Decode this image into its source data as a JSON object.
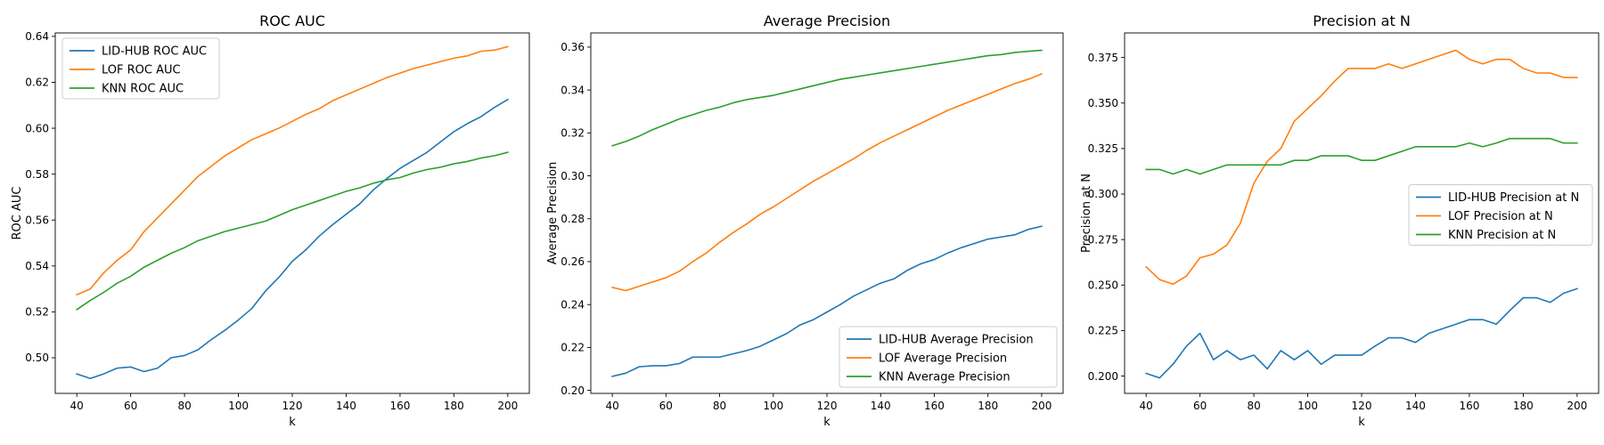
{
  "colors": {
    "LID-HUB": "#1f77b4",
    "LOF": "#ff7f0e",
    "KNN": "#2ca02c"
  },
  "chart_data": [
    {
      "type": "line",
      "title": "ROC AUC",
      "xlabel": "k",
      "ylabel": "ROC AUC",
      "xlim": [
        32,
        208
      ],
      "ylim": [
        0.4845,
        0.6415
      ],
      "xticks": [
        40,
        60,
        80,
        100,
        120,
        140,
        160,
        180,
        200
      ],
      "xtick_labels": [
        "40",
        "60",
        "80",
        "100",
        "120",
        "140",
        "160",
        "180",
        "200"
      ],
      "yticks": [
        0.5,
        0.52,
        0.54,
        0.56,
        0.58,
        0.6,
        0.62,
        0.64
      ],
      "ytick_labels": [
        "0.50",
        "0.52",
        "0.54",
        "0.56",
        "0.58",
        "0.60",
        "0.62",
        "0.64"
      ],
      "legend_position": "upper-left",
      "x": [
        40,
        45,
        50,
        55,
        60,
        65,
        70,
        75,
        80,
        85,
        90,
        95,
        100,
        105,
        110,
        115,
        120,
        125,
        130,
        135,
        140,
        145,
        150,
        155,
        160,
        165,
        170,
        175,
        180,
        185,
        190,
        195,
        200
      ],
      "series": [
        {
          "name": "LID-HUB ROC AUC",
          "key": "LID-HUB",
          "values": [
            0.493,
            0.491,
            0.493,
            0.4955,
            0.496,
            0.494,
            0.4955,
            0.5,
            0.501,
            0.5035,
            0.508,
            0.512,
            0.5165,
            0.5215,
            0.529,
            0.535,
            0.542,
            0.547,
            0.553,
            0.558,
            0.5625,
            0.567,
            0.573,
            0.578,
            0.5825,
            0.586,
            0.5895,
            0.594,
            0.5985,
            0.602,
            0.605,
            0.609,
            0.6125
          ]
        },
        {
          "name": "LOF ROC AUC",
          "key": "LOF",
          "values": [
            0.5275,
            0.53,
            0.537,
            0.5425,
            0.547,
            0.555,
            0.561,
            0.567,
            0.573,
            0.579,
            0.5835,
            0.588,
            0.5915,
            0.595,
            0.5975,
            0.6,
            0.603,
            0.606,
            0.6085,
            0.612,
            0.6145,
            0.617,
            0.6195,
            0.622,
            0.624,
            0.626,
            0.6275,
            0.629,
            0.6305,
            0.6315,
            0.6335,
            0.634,
            0.6355
          ]
        },
        {
          "name": "KNN ROC AUC",
          "key": "KNN",
          "values": [
            0.521,
            0.525,
            0.5285,
            0.5325,
            0.5355,
            0.5395,
            0.5425,
            0.5455,
            0.548,
            0.551,
            0.553,
            0.555,
            0.5565,
            0.558,
            0.5595,
            0.562,
            0.5645,
            0.5665,
            0.5685,
            0.5705,
            0.5725,
            0.574,
            0.576,
            0.5775,
            0.5785,
            0.5805,
            0.582,
            0.583,
            0.5845,
            0.5855,
            0.587,
            0.588,
            0.5895
          ]
        }
      ]
    },
    {
      "type": "line",
      "title": "Average Precision",
      "xlabel": "k",
      "ylabel": "Average Precision",
      "xlim": [
        32,
        208
      ],
      "ylim": [
        0.1986,
        0.3666
      ],
      "xticks": [
        40,
        60,
        80,
        100,
        120,
        140,
        160,
        180,
        200
      ],
      "xtick_labels": [
        "40",
        "60",
        "80",
        "100",
        "120",
        "140",
        "160",
        "180",
        "200"
      ],
      "yticks": [
        0.2,
        0.22,
        0.24,
        0.26,
        0.28,
        0.3,
        0.32,
        0.34,
        0.36
      ],
      "ytick_labels": [
        "0.20",
        "0.22",
        "0.24",
        "0.26",
        "0.28",
        "0.30",
        "0.32",
        "0.34",
        "0.36"
      ],
      "legend_position": "lower-right",
      "x": [
        40,
        45,
        50,
        55,
        60,
        65,
        70,
        75,
        80,
        85,
        90,
        95,
        100,
        105,
        110,
        115,
        120,
        125,
        130,
        135,
        140,
        145,
        150,
        155,
        160,
        165,
        170,
        175,
        180,
        185,
        190,
        195,
        200
      ],
      "series": [
        {
          "name": "LID-HUB Average Precision",
          "key": "LID-HUB",
          "values": [
            0.2065,
            0.208,
            0.211,
            0.2115,
            0.2115,
            0.2125,
            0.2155,
            0.2155,
            0.2155,
            0.217,
            0.2185,
            0.2205,
            0.2235,
            0.2265,
            0.2305,
            0.233,
            0.2365,
            0.24,
            0.244,
            0.247,
            0.25,
            0.252,
            0.256,
            0.259,
            0.261,
            0.264,
            0.2665,
            0.2685,
            0.2705,
            0.2715,
            0.2725,
            0.275,
            0.2765
          ]
        },
        {
          "name": "LOF Average Precision",
          "key": "LOF",
          "values": [
            0.248,
            0.2465,
            0.2485,
            0.2505,
            0.2525,
            0.2555,
            0.26,
            0.264,
            0.269,
            0.2735,
            0.2775,
            0.282,
            0.2855,
            0.2895,
            0.2935,
            0.2975,
            0.301,
            0.3045,
            0.308,
            0.312,
            0.3155,
            0.3185,
            0.3215,
            0.3245,
            0.3275,
            0.3305,
            0.333,
            0.3355,
            0.338,
            0.3405,
            0.343,
            0.345,
            0.3475
          ]
        },
        {
          "name": "KNN Average Precision",
          "key": "KNN",
          "values": [
            0.314,
            0.316,
            0.3185,
            0.3215,
            0.324,
            0.3265,
            0.3285,
            0.3305,
            0.332,
            0.334,
            0.3355,
            0.3365,
            0.3375,
            0.339,
            0.3405,
            0.342,
            0.3435,
            0.345,
            0.346,
            0.347,
            0.348,
            0.349,
            0.35,
            0.351,
            0.352,
            0.353,
            0.354,
            0.355,
            0.356,
            0.3565,
            0.3575,
            0.358,
            0.3585
          ]
        }
      ]
    },
    {
      "type": "line",
      "title": "Precision at N",
      "xlabel": "k",
      "ylabel": "Precision at N",
      "xlim": [
        32,
        208
      ],
      "ylim": [
        0.1905,
        0.3885
      ],
      "xticks": [
        40,
        60,
        80,
        100,
        120,
        140,
        160,
        180,
        200
      ],
      "xtick_labels": [
        "40",
        "60",
        "80",
        "100",
        "120",
        "140",
        "160",
        "180",
        "200"
      ],
      "yticks": [
        0.2,
        0.225,
        0.25,
        0.275,
        0.3,
        0.325,
        0.35,
        0.375
      ],
      "ytick_labels": [
        "0.200",
        "0.225",
        "0.250",
        "0.275",
        "0.300",
        "0.325",
        "0.350",
        "0.375"
      ],
      "legend_position": "center-right",
      "x": [
        40,
        45,
        50,
        55,
        60,
        65,
        70,
        75,
        80,
        85,
        90,
        95,
        100,
        105,
        110,
        115,
        120,
        125,
        130,
        135,
        140,
        145,
        150,
        155,
        160,
        165,
        170,
        175,
        180,
        185,
        190,
        195,
        200
      ],
      "series": [
        {
          "name": "LID-HUB Precision at N",
          "key": "LID-HUB",
          "values": [
            0.2015,
            0.199,
            0.2065,
            0.2165,
            0.2235,
            0.209,
            0.214,
            0.209,
            0.2115,
            0.204,
            0.214,
            0.209,
            0.214,
            0.2065,
            0.2115,
            0.2115,
            0.2115,
            0.2165,
            0.221,
            0.221,
            0.2185,
            0.2235,
            0.226,
            0.2285,
            0.231,
            0.231,
            0.2285,
            0.236,
            0.243,
            0.243,
            0.2405,
            0.2455,
            0.248
          ]
        },
        {
          "name": "LOF Precision at N",
          "key": "LOF",
          "values": [
            0.26,
            0.253,
            0.2505,
            0.255,
            0.265,
            0.267,
            0.272,
            0.284,
            0.306,
            0.318,
            0.325,
            0.34,
            0.347,
            0.354,
            0.362,
            0.369,
            0.369,
            0.369,
            0.3715,
            0.369,
            0.3715,
            0.374,
            0.3765,
            0.379,
            0.374,
            0.3715,
            0.374,
            0.374,
            0.369,
            0.3665,
            0.3665,
            0.364,
            0.364
          ]
        },
        {
          "name": "KNN Precision at N",
          "key": "KNN",
          "values": [
            0.3135,
            0.3135,
            0.311,
            0.3135,
            0.311,
            0.3135,
            0.316,
            0.316,
            0.316,
            0.316,
            0.316,
            0.3185,
            0.3185,
            0.321,
            0.321,
            0.321,
            0.3185,
            0.3185,
            0.321,
            0.3235,
            0.326,
            0.326,
            0.326,
            0.326,
            0.328,
            0.326,
            0.328,
            0.3305,
            0.3305,
            0.3305,
            0.3305,
            0.328,
            0.328
          ]
        }
      ]
    }
  ]
}
